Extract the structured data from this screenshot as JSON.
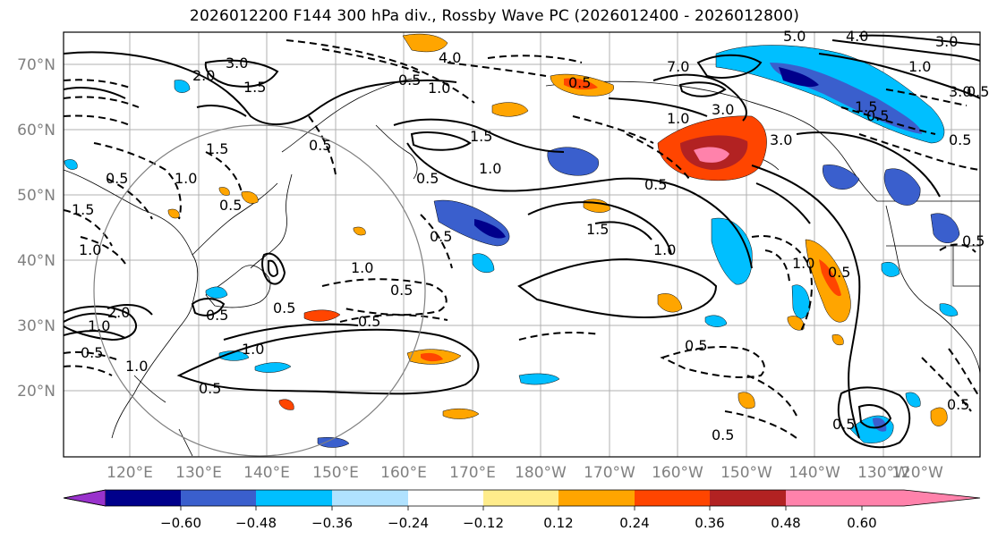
{
  "title": "2026012200 F144 300 hPa div., Rossby Wave PC (2026012400 - 2026012800)",
  "lat_labels": [
    "70°N",
    "60°N",
    "50°N",
    "40°N",
    "30°N",
    "20°N"
  ],
  "lon_labels": [
    "120°E",
    "130°E",
    "140°E",
    "150°E",
    "160°E",
    "170°E",
    "180°W",
    "170°W",
    "160°W",
    "150°W",
    "140°W",
    "130°W",
    "120°W"
  ],
  "contour_labels": [
    "3.0",
    "4.0",
    "2.0",
    "1.5",
    "0.5",
    "1.0",
    "1.5",
    "0.5",
    "1.0",
    "0.5",
    "1.5",
    "0.5",
    "1.0",
    "0.5",
    "1.0",
    "1.5",
    "0.5",
    "1.0",
    "0.5",
    "0.5",
    "2.0",
    "0.5",
    "1.0",
    "0.5",
    "0.5",
    "1.5",
    "1.0",
    "3.0",
    "1.0",
    "5.0",
    "4.0",
    "3.0",
    "1.0",
    "3.0",
    "7.0",
    "3.0",
    "1.5",
    "1.0",
    "0.5",
    "0.5",
    "0.5",
    "0.5",
    "0.5",
    "0.5",
    "0.5",
    "0.5",
    "0.5",
    "0.5",
    "0.5",
    "1.0",
    "1.0",
    "0.5"
  ],
  "colorbar": {
    "ticks": [
      "−0.60",
      "−0.48",
      "−0.36",
      "−0.24",
      "−0.12",
      "0.12",
      "0.24",
      "0.36",
      "0.48",
      "0.60"
    ],
    "colors": [
      "#9932cc",
      "#00008b",
      "#3a5fcd",
      "#00bfff",
      "#b0e2ff",
      "#ffffff",
      "#ffec8b",
      "#ffa500",
      "#ff4500",
      "#b22222",
      "#ff82ab"
    ]
  },
  "colors": {
    "grid": "#b0b0b0",
    "label_gray": "#808080",
    "circle": "#808080"
  }
}
